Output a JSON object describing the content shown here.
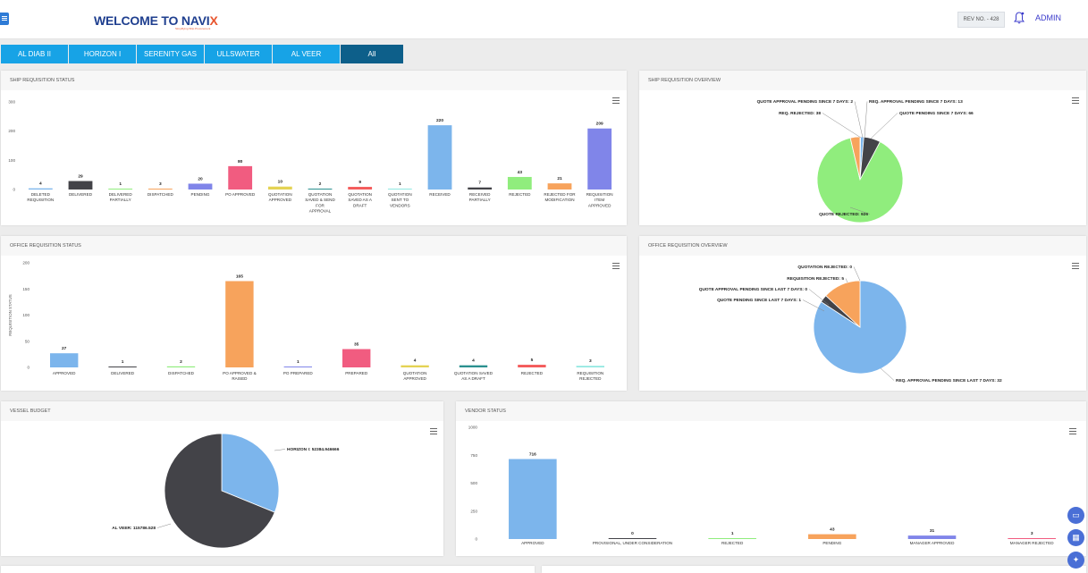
{
  "header": {
    "title_prefix": "WELCOME TO",
    "brand_main": "NAVI",
    "brand_x": "X",
    "tagline": "Simplifying Ship Procurement",
    "rev_label": "REV NO. - 428",
    "user_label": "ADMIN"
  },
  "tabs": [
    {
      "label": "AL DIAB II"
    },
    {
      "label": "HORIZON I"
    },
    {
      "label": "SERENITY GAS"
    },
    {
      "label": "ULLSWATER"
    },
    {
      "label": "AL VEER"
    },
    {
      "label": "All",
      "active": true
    }
  ],
  "panels": {
    "ship_status": {
      "title": "SHIP REQUISITION STATUS"
    },
    "ship_overview": {
      "title": "SHIP REQUISITION OVERVIEW"
    },
    "office_status": {
      "title": "OFFICE REQUISITION STATUS"
    },
    "office_overview": {
      "title": "OFFICE REQUISITION OVERVIEW"
    },
    "vessel_budget": {
      "title": "VESSEL BUDGET"
    },
    "vendor_status": {
      "title": "VENDOR STATUS"
    }
  },
  "chart_data": [
    {
      "id": "ship_status",
      "type": "bar",
      "categories": [
        [
          "DELETED",
          "REQUISITION"
        ],
        [
          "DELIVERED"
        ],
        [
          "DELIVERED",
          "PARTIALLY"
        ],
        [
          "DISPATCHED"
        ],
        [
          "PENDING"
        ],
        [
          "PO APPROVED"
        ],
        [
          "QUOTATION",
          "APPROVED"
        ],
        [
          "QUOTATION",
          "SAVED & SEND",
          "FOR",
          "APPROVAL"
        ],
        [
          "QUOTATION",
          "SAVED AS A",
          "DRAFT"
        ],
        [
          "QUOTATION",
          "SENT TO",
          "VENDORS"
        ],
        [
          "RECEIVED"
        ],
        [
          "RECEIVED",
          "PARTIALLY"
        ],
        [
          "REJECTED"
        ],
        [
          "REJECTED FOR",
          "MODIFICATION"
        ],
        [
          "REQUISITION",
          "ITEM",
          "APPROVED"
        ]
      ],
      "values": [
        4,
        29,
        1,
        3,
        20,
        80,
        10,
        2,
        9,
        1,
        220,
        7,
        43,
        21,
        209
      ],
      "colors": [
        "#7cb5ec",
        "#434348",
        "#90ed7d",
        "#f7a35c",
        "#8085e9",
        "#f15c80",
        "#e4d354",
        "#2b908f",
        "#f45b5b",
        "#91e8e1",
        "#7cb5ec",
        "#434348",
        "#90ed7d",
        "#f7a35c",
        "#8085e9"
      ],
      "ylim": [
        0,
        300
      ],
      "yticks": [
        0,
        100,
        200,
        300
      ],
      "ylabel": ""
    },
    {
      "id": "ship_overview",
      "type": "pie",
      "slices": [
        {
          "label": "QUOTE REJECTED: 926",
          "value": 926,
          "color": "#90ed7d"
        },
        {
          "label": "REQ. REJECTED: 38",
          "value": 38,
          "color": "#f7a35c"
        },
        {
          "label": "QUOTE APPROVAL PENDING SINCE 7 DAYS: 2",
          "value": 2,
          "color": "#8085e9"
        },
        {
          "label": "REQ. APPROVAL PENDING SINCE 7 DAYS: 13",
          "value": 13,
          "color": "#7cb5ec"
        },
        {
          "label": "QUOTE PENDING SINCE 7 DAYS: 66",
          "value": 66,
          "color": "#434348"
        }
      ]
    },
    {
      "id": "office_status",
      "type": "bar",
      "categories": [
        [
          "APPROVED"
        ],
        [
          "DELIVERED"
        ],
        [
          "DISPATCHED"
        ],
        [
          "PO APPROVED &",
          "RAISED"
        ],
        [
          "PO PREPARED"
        ],
        [
          "PREPARED"
        ],
        [
          "QUOTATION",
          "APPROVED"
        ],
        [
          "QUOTATION SAVED",
          "AS A DRAFT"
        ],
        [
          "REJECTED"
        ],
        [
          "REQUISITION",
          "REJECTED"
        ]
      ],
      "values": [
        27,
        1,
        2,
        165,
        1,
        35,
        4,
        4,
        5,
        3
      ],
      "colors": [
        "#7cb5ec",
        "#434348",
        "#90ed7d",
        "#f7a35c",
        "#8085e9",
        "#f15c80",
        "#e4d354",
        "#2b908f",
        "#f45b5b",
        "#91e8e1"
      ],
      "ylim": [
        0,
        200
      ],
      "yticks": [
        0,
        50,
        100,
        150,
        200
      ],
      "ylabel": "REQUISITION STATUS"
    },
    {
      "id": "office_overview",
      "type": "pie",
      "slices": [
        {
          "label": "REQ. APPROVAL PENDING SINCE LAST 7 DAYS: 32",
          "value": 32,
          "color": "#7cb5ec"
        },
        {
          "label": "QUOTE PENDING SINCE LAST 7 DAYS: 1",
          "value": 1,
          "color": "#434348"
        },
        {
          "label": "QUOTE APPROVAL PENDING SINCE LAST 7 DAYS: 0",
          "value": 0,
          "color": "#90ed7d"
        },
        {
          "label": "REQUISITION REJECTED: 5",
          "value": 5,
          "color": "#f7a35c"
        },
        {
          "label": "QUOTATION REJECTED: 0",
          "value": 0,
          "color": "#8085e9"
        }
      ]
    },
    {
      "id": "vessel_budget",
      "type": "pie",
      "slices": [
        {
          "label": "HORIZON I: 52384.946666",
          "value": 52384.946666,
          "color": "#7cb5ec"
        },
        {
          "label": "AL VEER: 115786.528",
          "value": 115786.528,
          "color": "#434348"
        }
      ]
    },
    {
      "id": "vendor_status",
      "type": "bar",
      "categories": [
        [
          "APPROVED"
        ],
        [
          "PROVISIONAL, UNDER CONSIDERATION"
        ],
        [
          "REJECTED"
        ],
        [
          "PENDING"
        ],
        [
          "MANAGER APPROVED"
        ],
        [
          "MANAGER REJECTED"
        ]
      ],
      "values": [
        716,
        0,
        1,
        43,
        31,
        3
      ],
      "colors": [
        "#7cb5ec",
        "#434348",
        "#90ed7d",
        "#f7a35c",
        "#8085e9",
        "#f15c80"
      ],
      "ylim": [
        0,
        1000
      ],
      "yticks": [
        0,
        250,
        500,
        750,
        1000
      ],
      "ylabel": ""
    }
  ],
  "floating_buttons": [
    {
      "icon": "calendar-icon",
      "glyph": "▭"
    },
    {
      "icon": "grid-icon",
      "glyph": "▦"
    },
    {
      "icon": "pin-icon",
      "glyph": "✦"
    }
  ]
}
